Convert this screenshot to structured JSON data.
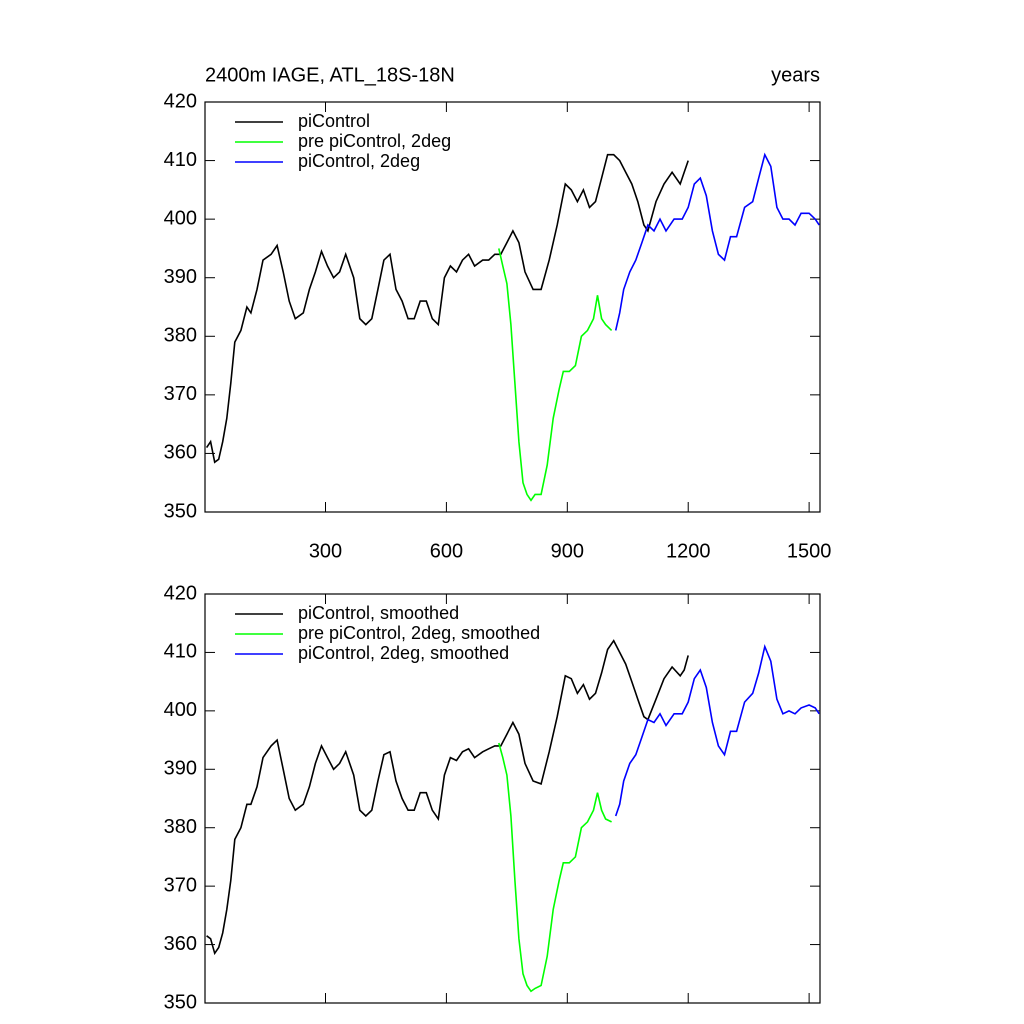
{
  "chart_data": [
    {
      "type": "line",
      "title": "2400m IAGE, ATL_18S-18N",
      "x_label": "years",
      "xlim": [
        1,
        1527
      ],
      "xticks": [
        300,
        600,
        900,
        1200,
        1500
      ],
      "ylim": [
        350,
        420
      ],
      "yticks": [
        350,
        360,
        370,
        380,
        390,
        400,
        410,
        420
      ],
      "legend": "upper left",
      "series": [
        {
          "name": "piControl",
          "color": "#000000",
          "x": [
            5,
            15,
            25,
            35,
            45,
            55,
            65,
            75,
            90,
            105,
            115,
            130,
            145,
            165,
            180,
            195,
            210,
            225,
            245,
            260,
            275,
            290,
            305,
            320,
            335,
            350,
            370,
            385,
            400,
            415,
            430,
            445,
            460,
            475,
            490,
            505,
            520,
            535,
            550,
            565,
            580,
            595,
            610,
            625,
            640,
            655,
            670,
            690,
            705,
            720,
            735,
            750,
            765,
            780,
            795,
            815,
            835,
            855,
            875,
            895,
            910,
            925,
            940,
            955,
            970,
            985,
            1000,
            1015,
            1030,
            1045,
            1060,
            1075,
            1090,
            1100,
            1120,
            1140,
            1160,
            1180,
            1190,
            1200
          ],
          "values": [
            361,
            362,
            358.5,
            359,
            362,
            366,
            372,
            379,
            381,
            385,
            384,
            388,
            393,
            394,
            395.5,
            391,
            386,
            383,
            384,
            388,
            391,
            394.5,
            392,
            390,
            391,
            394,
            390,
            383,
            382,
            383,
            388,
            393,
            394,
            388,
            386,
            383,
            383,
            386,
            386,
            383,
            382,
            390,
            392,
            391,
            393,
            394,
            392,
            393,
            393,
            394,
            394,
            396,
            398,
            396,
            391,
            388,
            388,
            393,
            399,
            406,
            405,
            403,
            405,
            402,
            403,
            407,
            411,
            411,
            410,
            408,
            406,
            403,
            399,
            398,
            403,
            406,
            408,
            406,
            408,
            410
          ]
        },
        {
          "name": "pre piControl, 2deg",
          "color": "#00ff00",
          "x": [
            730,
            740,
            750,
            760,
            770,
            780,
            790,
            800,
            810,
            820,
            835,
            850,
            865,
            880,
            890,
            905,
            920,
            935,
            950,
            965,
            975,
            985,
            995,
            1010
          ],
          "values": [
            395,
            392,
            389,
            382,
            372,
            362,
            355,
            353,
            352,
            353,
            353,
            358,
            366,
            371,
            374,
            374,
            375,
            380,
            381,
            383,
            387,
            383,
            382,
            381
          ]
        },
        {
          "name": "piControl, 2deg",
          "color": "#0000ff",
          "x": [
            1020,
            1030,
            1040,
            1055,
            1070,
            1085,
            1100,
            1115,
            1130,
            1145,
            1165,
            1185,
            1200,
            1215,
            1230,
            1245,
            1260,
            1275,
            1290,
            1305,
            1320,
            1340,
            1360,
            1375,
            1390,
            1405,
            1420,
            1435,
            1450,
            1465,
            1480,
            1500,
            1515,
            1525
          ],
          "values": [
            381,
            384,
            388,
            391,
            393,
            396,
            399,
            398,
            400,
            398,
            400,
            400,
            402,
            406,
            407,
            404,
            398,
            394,
            393,
            397,
            397,
            402,
            403,
            407,
            411,
            409,
            402,
            400,
            400,
            399,
            401,
            401,
            400,
            399
          ]
        }
      ]
    },
    {
      "type": "line",
      "xlim": [
        1,
        1527
      ],
      "ylim": [
        350,
        420
      ],
      "yticks": [
        350,
        360,
        370,
        380,
        390,
        400,
        410,
        420
      ],
      "legend": "upper left",
      "series": [
        {
          "name": "piControl, smoothed",
          "color": "#000000",
          "x": [
            5,
            15,
            25,
            35,
            45,
            55,
            65,
            75,
            90,
            105,
            115,
            130,
            145,
            165,
            180,
            195,
            210,
            225,
            245,
            260,
            275,
            290,
            305,
            320,
            335,
            350,
            370,
            385,
            400,
            415,
            430,
            445,
            460,
            475,
            490,
            505,
            520,
            535,
            550,
            565,
            580,
            595,
            610,
            625,
            640,
            655,
            670,
            690,
            705,
            720,
            735,
            750,
            765,
            780,
            795,
            815,
            835,
            855,
            875,
            895,
            910,
            925,
            940,
            955,
            970,
            985,
            1000,
            1015,
            1030,
            1045,
            1060,
            1075,
            1090,
            1100,
            1120,
            1140,
            1160,
            1180,
            1190,
            1200
          ],
          "values": [
            361.5,
            361,
            358.5,
            359.5,
            362,
            366,
            371,
            378,
            380,
            384,
            384,
            387,
            392,
            394,
            395,
            390,
            385,
            383,
            384,
            387,
            391,
            394,
            392,
            390,
            391,
            393,
            389,
            383,
            382,
            383,
            388,
            392.5,
            393,
            388,
            385,
            383,
            383,
            386,
            386,
            383,
            381.5,
            389,
            392,
            391.5,
            393,
            393.5,
            392,
            393,
            393.5,
            394,
            394,
            396,
            398,
            396,
            391,
            388,
            387.5,
            393,
            399,
            406,
            405.5,
            403,
            404.5,
            402,
            403,
            406.5,
            410.5,
            412,
            410,
            408,
            405,
            402,
            399,
            398.5,
            402,
            405.5,
            407.5,
            406,
            407,
            409.5
          ]
        },
        {
          "name": "pre piControl, 2deg, smoothed",
          "color": "#00ff00",
          "x": [
            730,
            740,
            750,
            760,
            770,
            780,
            790,
            800,
            810,
            820,
            835,
            850,
            865,
            880,
            890,
            905,
            920,
            935,
            950,
            965,
            975,
            985,
            995,
            1010
          ],
          "values": [
            394.5,
            392,
            389,
            382,
            371,
            361,
            355,
            353,
            352,
            352.5,
            353,
            358,
            366,
            371,
            374,
            374,
            375,
            380,
            381,
            383,
            386,
            383,
            381.5,
            381
          ]
        },
        {
          "name": "piControl, 2deg, smoothed",
          "color": "#0000ff",
          "x": [
            1020,
            1030,
            1040,
            1055,
            1070,
            1085,
            1100,
            1115,
            1130,
            1145,
            1165,
            1185,
            1200,
            1215,
            1230,
            1245,
            1260,
            1275,
            1290,
            1305,
            1320,
            1340,
            1360,
            1375,
            1390,
            1405,
            1420,
            1435,
            1450,
            1465,
            1480,
            1500,
            1515,
            1525
          ],
          "values": [
            382,
            384,
            388,
            391,
            392.5,
            395.5,
            398.5,
            398,
            399.5,
            397.5,
            399.5,
            399.5,
            401.5,
            405.5,
            407,
            404,
            398,
            394,
            392.5,
            396.5,
            396.5,
            401.5,
            403,
            406.5,
            411,
            408.5,
            402,
            399.5,
            400,
            399.5,
            400.5,
            401,
            400.5,
            399.5
          ]
        }
      ]
    }
  ]
}
